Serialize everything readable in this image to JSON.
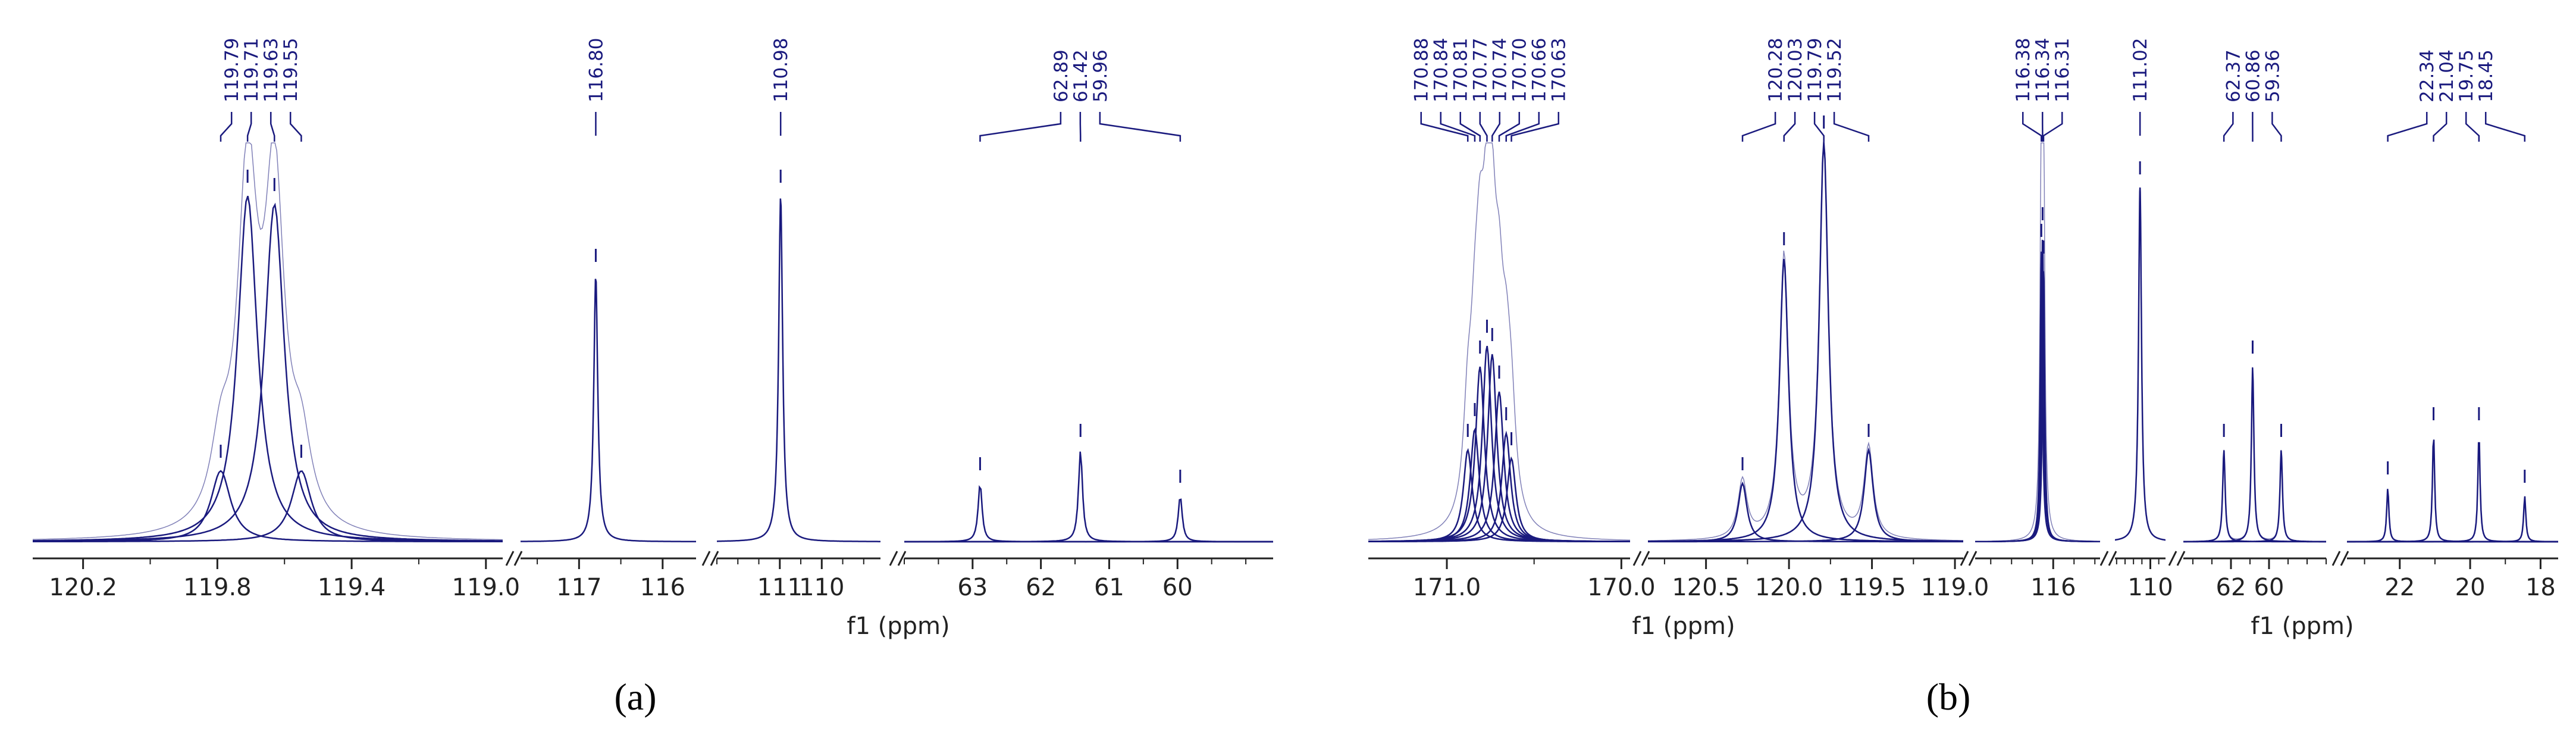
{
  "colors": {
    "spectrum": "#1a1a7e",
    "axis": "#222222",
    "background": "#ffffff"
  },
  "chart_data": [
    {
      "type": "line",
      "panel_label": "(a)",
      "xlabel": "f1 (ppm)",
      "ylabel": "",
      "grid": false,
      "x_direction": "reversed",
      "segments": [
        {
          "xlim": [
            120.35,
            118.95
          ],
          "ticks": [
            120.2,
            119.8,
            119.4,
            119.0
          ],
          "tick_labels": [
            "120.2",
            "119.8",
            "119.4",
            "119.0"
          ],
          "peaks": [
            {
              "ppm": 119.79,
              "label": "119.79",
              "height": 0.17
            },
            {
              "ppm": 119.71,
              "label": "119.71",
              "height": 0.83
            },
            {
              "ppm": 119.63,
              "label": "119.63",
              "height": 0.81
            },
            {
              "ppm": 119.55,
              "label": "119.55",
              "height": 0.17
            }
          ]
        },
        {
          "xlim": [
            117.7,
            115.6
          ],
          "ticks": [
            117,
            116
          ],
          "tick_labels": [
            "117",
            "116"
          ],
          "peaks": [
            {
              "ppm": 116.8,
              "label": "116.80",
              "height": 0.64
            }
          ]
        },
        {
          "xlim": [
            112.5,
            108.6
          ],
          "ticks": [
            111,
            110
          ],
          "tick_labels": [
            "111",
            "110"
          ],
          "peaks": [
            {
              "ppm": 110.98,
              "label": "110.98",
              "height": 0.83
            }
          ]
        },
        {
          "xlim": [
            64.0,
            58.6
          ],
          "ticks": [
            63,
            62,
            61,
            60
          ],
          "tick_labels": [
            "63",
            "62",
            "61",
            "60"
          ],
          "peaks": [
            {
              "ppm": 62.89,
              "label": "62.89",
              "height": 0.14
            },
            {
              "ppm": 61.42,
              "label": "61.42",
              "height": 0.22
            },
            {
              "ppm": 59.96,
              "label": "59.96",
              "height": 0.11
            }
          ]
        }
      ]
    },
    {
      "type": "line",
      "panel_label": "(b)",
      "xlabel": "f1 (ppm)",
      "ylabel": "",
      "grid": false,
      "x_direction": "reversed",
      "segments": [
        {
          "xlim": [
            171.45,
            169.95
          ],
          "ticks": [
            171.0,
            170.0
          ],
          "tick_labels": [
            "171.0",
            "170.0"
          ],
          "peaks": [
            {
              "ppm": 170.88,
              "label": "170.88",
              "height": 0.22
            },
            {
              "ppm": 170.84,
              "label": "170.84",
              "height": 0.27
            },
            {
              "ppm": 170.81,
              "label": "170.81",
              "height": 0.42
            },
            {
              "ppm": 170.77,
              "label": "170.77",
              "height": 0.47
            },
            {
              "ppm": 170.74,
              "label": "170.74",
              "height": 0.45
            },
            {
              "ppm": 170.7,
              "label": "170.70",
              "height": 0.36
            },
            {
              "ppm": 170.66,
              "label": "170.66",
              "height": 0.26
            },
            {
              "ppm": 170.63,
              "label": "170.63",
              "height": 0.2
            }
          ]
        },
        {
          "xlim": [
            120.85,
            118.95
          ],
          "ticks": [
            120.5,
            120.0,
            119.5,
            119.0
          ],
          "tick_labels": [
            "120.5",
            "120.0",
            "119.5",
            "119.0"
          ],
          "peaks": [
            {
              "ppm": 120.28,
              "label": "120.28",
              "height": 0.14
            },
            {
              "ppm": 120.03,
              "label": "120.03",
              "height": 0.68
            },
            {
              "ppm": 119.79,
              "label": "119.79",
              "height": 0.96
            },
            {
              "ppm": 119.52,
              "label": "119.52",
              "height": 0.22
            }
          ]
        },
        {
          "xlim": [
            118.5,
            114.5
          ],
          "ticks": [
            116
          ],
          "tick_labels": [
            "116"
          ],
          "peaks": [
            {
              "ppm": 116.38,
              "label": "116.38",
              "height": 0.7
            },
            {
              "ppm": 116.34,
              "label": "116.34",
              "height": 0.74
            },
            {
              "ppm": 116.31,
              "label": "116.31",
              "height": 0.66
            }
          ]
        },
        {
          "xlim": [
            113.5,
            108.5
          ],
          "ticks": [
            110
          ],
          "tick_labels": [
            "110"
          ],
          "peaks": [
            {
              "ppm": 111.02,
              "label": "111.02",
              "height": 0.85
            }
          ]
        },
        {
          "xlim": [
            64.5,
            57.0
          ],
          "ticks": [
            62,
            60
          ],
          "tick_labels": [
            "62",
            "60"
          ],
          "peaks": [
            {
              "ppm": 62.37,
              "label": "62.37",
              "height": 0.22
            },
            {
              "ppm": 60.86,
              "label": "60.86",
              "height": 0.42
            },
            {
              "ppm": 59.36,
              "label": "59.36",
              "height": 0.22
            }
          ]
        },
        {
          "xlim": [
            23.5,
            17.5
          ],
          "ticks": [
            22,
            20,
            18
          ],
          "tick_labels": [
            "22",
            "20",
            "18"
          ],
          "peaks": [
            {
              "ppm": 22.34,
              "label": "22.34",
              "height": 0.13
            },
            {
              "ppm": 21.04,
              "label": "21.04",
              "height": 0.26
            },
            {
              "ppm": 19.75,
              "label": "19.75",
              "height": 0.26
            },
            {
              "ppm": 18.45,
              "label": "18.45",
              "height": 0.11
            }
          ]
        }
      ]
    }
  ]
}
